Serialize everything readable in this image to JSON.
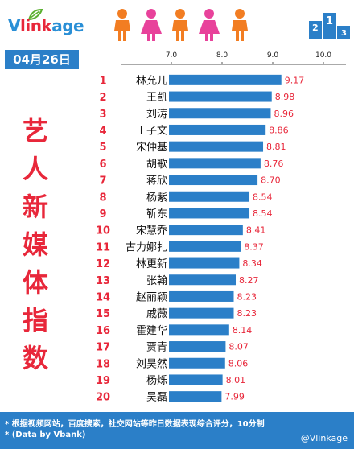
{
  "brand": {
    "logo_v": "V",
    "logo_link": "link",
    "logo_age": "age"
  },
  "date": "04月26日",
  "title_chars": [
    "艺",
    "人",
    "新",
    "媒",
    "体",
    "指",
    "数"
  ],
  "colors": {
    "bar": "#2b7fc8",
    "rank": "#e8273a",
    "value": "#e8273a",
    "name": "#111111",
    "header": "#2b7fc8",
    "title": "#e8273a",
    "people_orange": "#f27d22",
    "people_pink": "#e8429b"
  },
  "podium_digits": [
    "2",
    "1",
    "3"
  ],
  "chart_data": {
    "type": "bar",
    "orientation": "horizontal",
    "xlim": [
      6.0,
      10.0
    ],
    "x_ticks": [
      "7.0",
      "8.0",
      "9.0",
      "10.0"
    ],
    "tick_values": [
      7.0,
      8.0,
      9.0,
      10.0
    ],
    "ranks": [
      "1",
      "2",
      "3",
      "4",
      "5",
      "6",
      "7",
      "8",
      "9",
      "10",
      "11",
      "12",
      "13",
      "14",
      "15",
      "16",
      "17",
      "18",
      "19",
      "20"
    ],
    "categories": [
      "林允儿",
      "王凯",
      "刘涛",
      "王子文",
      "宋仲基",
      "胡歌",
      "蒋欣",
      "杨紫",
      "靳东",
      "宋慧乔",
      "古力娜扎",
      "林更新",
      "张翰",
      "赵丽颖",
      "戚薇",
      "霍建华",
      "贾青",
      "刘昊然",
      "杨烁",
      "吴磊"
    ],
    "values": [
      9.17,
      8.98,
      8.96,
      8.86,
      8.81,
      8.76,
      8.7,
      8.54,
      8.54,
      8.41,
      8.37,
      8.34,
      8.27,
      8.23,
      8.23,
      8.14,
      8.07,
      8.06,
      8.01,
      7.99
    ],
    "value_labels": [
      "9.17",
      "8.98",
      "8.96",
      "8.86",
      "8.81",
      "8.76",
      "8.70",
      "8.54",
      "8.54",
      "8.41",
      "8.37",
      "8.34",
      "8.27",
      "8.23",
      "8.23",
      "8.14",
      "8.07",
      "8.06",
      "8.01",
      "7.99"
    ]
  },
  "footer": {
    "note1": "* 根据视频网站，百度搜索，社交网站等昨日数据表现综合评分，10分制",
    "note2": "* (Data by Vbank)",
    "credit": "@Vlinkage"
  }
}
